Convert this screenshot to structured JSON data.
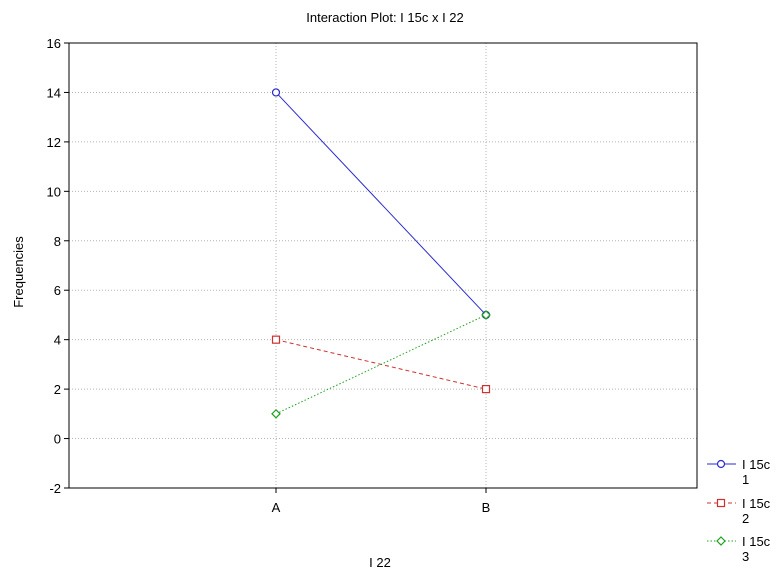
{
  "chart_data": {
    "type": "line",
    "title": "Interaction Plot: I 15c x I 22",
    "xlabel": "I 22",
    "ylabel": "Frequencies",
    "categories": [
      "A",
      "B"
    ],
    "ylim": [
      -2,
      16
    ],
    "yticks": [
      -2,
      0,
      2,
      4,
      6,
      8,
      10,
      12,
      14,
      16
    ],
    "grid": true,
    "legend_position": "right-bottom",
    "series": [
      {
        "name": "I 15c 1",
        "name_lines": [
          "I 15c",
          "1"
        ],
        "values": [
          14,
          5
        ],
        "color": "#2b2bd0",
        "marker": "circle",
        "dash": "solid"
      },
      {
        "name": "I 15c 2",
        "name_lines": [
          "I 15c",
          "2"
        ],
        "values": [
          4,
          2
        ],
        "color": "#d03030",
        "marker": "square",
        "dash": "dashed"
      },
      {
        "name": "I 15c 3",
        "name_lines": [
          "I 15c",
          "3"
        ],
        "values": [
          1,
          5
        ],
        "color": "#20a020",
        "marker": "diamond",
        "dash": "dotted"
      }
    ]
  }
}
